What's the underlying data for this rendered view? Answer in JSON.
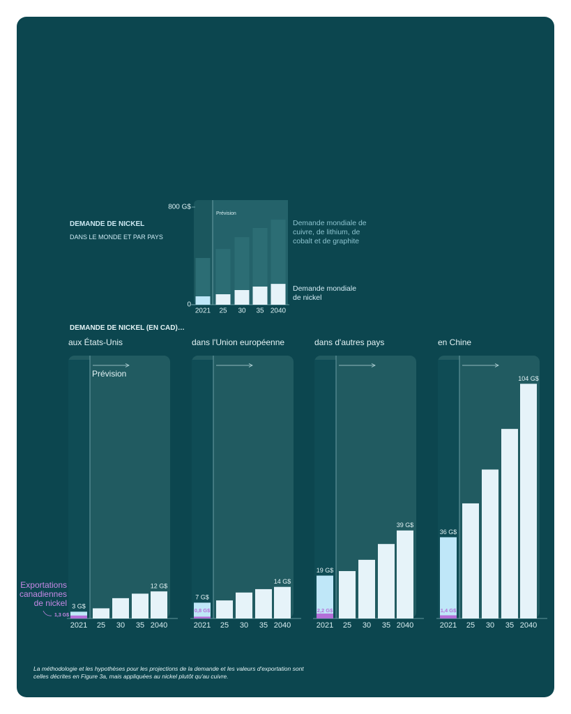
{
  "chart_data": [
    {
      "type": "bar",
      "stacked": true,
      "title": "DEMANDE DE NICKEL",
      "subtitle": "DANS LE MONDE ET PAR PAYS",
      "annotation": "Prévision",
      "categories": [
        "2021",
        "25",
        "30",
        "35",
        "2040"
      ],
      "ylim": [
        0,
        800
      ],
      "yticks": [
        0,
        {
          "value": 800,
          "label": "800 G$"
        }
      ],
      "series": [
        {
          "name": "Demande mondiale de nickel",
          "color": "#e6f3f9",
          "colors": [
            "#bfe7f8",
            "#e6f3f9",
            "#e6f3f9",
            "#e6f3f9",
            "#e6f3f9"
          ],
          "values": [
            69,
            86,
            120,
            149,
            171
          ]
        },
        {
          "name": "Demande mondiale de cuivre, de lithium, de cobalt et de graphite",
          "color": "#2c6d74",
          "values": [
            314,
            371,
            434,
            480,
            526
          ]
        }
      ]
    },
    {
      "type": "bar",
      "stacked": false,
      "title": "aux États-Unis",
      "annotation": "Prévision",
      "categories": [
        "2021",
        "25",
        "30",
        "35",
        "2040"
      ],
      "ylim": [
        0,
        110
      ],
      "series": [
        {
          "color": "#e6f3f9",
          "colors": [
            "#bfe7f8",
            "#e6f3f9",
            "#e6f3f9",
            "#e6f3f9",
            "#e6f3f9"
          ],
          "values": [
            3,
            4.5,
            9,
            11,
            12
          ],
          "value_labels": [
            "3 G$",
            null,
            null,
            null,
            "12 G$"
          ]
        },
        {
          "name": "Exportations canadiennes de nickel",
          "color": "#b46fd8",
          "values": [
            1.3,
            null,
            null,
            null,
            null
          ],
          "value_labels": [
            "1,3 G$",
            null,
            null,
            null,
            null
          ]
        }
      ]
    },
    {
      "type": "bar",
      "stacked": false,
      "title": "dans l'Union européenne",
      "categories": [
        "2021",
        "25",
        "30",
        "35",
        "2040"
      ],
      "ylim": [
        0,
        110
      ],
      "series": [
        {
          "color": "#e6f3f9",
          "colors": [
            "#bfe7f8",
            "#e6f3f9",
            "#e6f3f9",
            "#e6f3f9",
            "#e6f3f9"
          ],
          "values": [
            7,
            8,
            11.5,
            13,
            14
          ],
          "value_labels": [
            "7 G$",
            null,
            null,
            null,
            "14 G$"
          ]
        },
        {
          "color": "#b46fd8",
          "values": [
            0.8,
            null,
            null,
            null,
            null
          ],
          "value_labels": [
            "0,8 G$",
            null,
            null,
            null,
            null
          ]
        }
      ]
    },
    {
      "type": "bar",
      "stacked": false,
      "title": "dans d'autres pays",
      "categories": [
        "2021",
        "25",
        "30",
        "35",
        "2040"
      ],
      "ylim": [
        0,
        110
      ],
      "series": [
        {
          "color": "#e6f3f9",
          "colors": [
            "#bfe7f8",
            "#e6f3f9",
            "#e6f3f9",
            "#e6f3f9",
            "#e6f3f9"
          ],
          "values": [
            19,
            21,
            26,
            33,
            39
          ],
          "value_labels": [
            "19 G$",
            null,
            null,
            null,
            "39 G$"
          ]
        },
        {
          "color": "#b46fd8",
          "values": [
            2.2,
            null,
            null,
            null,
            null
          ],
          "value_labels": [
            "2,2 G$",
            null,
            null,
            null,
            null
          ]
        }
      ]
    },
    {
      "type": "bar",
      "stacked": false,
      "title": "en Chine",
      "categories": [
        "2021",
        "25",
        "30",
        "35",
        "2040"
      ],
      "ylim": [
        0,
        110
      ],
      "series": [
        {
          "color": "#e6f3f9",
          "colors": [
            "#bfe7f8",
            "#e6f3f9",
            "#e6f3f9",
            "#e6f3f9",
            "#e6f3f9"
          ],
          "values": [
            36,
            51,
            66,
            84,
            104
          ],
          "value_labels": [
            "36 G$",
            null,
            null,
            null,
            "104 G$"
          ]
        },
        {
          "color": "#b46fd8",
          "values": [
            1.4,
            null,
            null,
            null,
            null
          ],
          "value_labels": [
            "1,4 G$",
            null,
            null,
            null,
            null
          ]
        }
      ]
    }
  ],
  "section_title": "DEMANDE DE NICKEL (EN CAD)…",
  "note": "La méthodologie et les hypothèses pour les projections de la demande et les valeurs d'exportation sont celles décrites en Figure 3a, mais appliquées au nickel plutôt qu'au cuivre."
}
